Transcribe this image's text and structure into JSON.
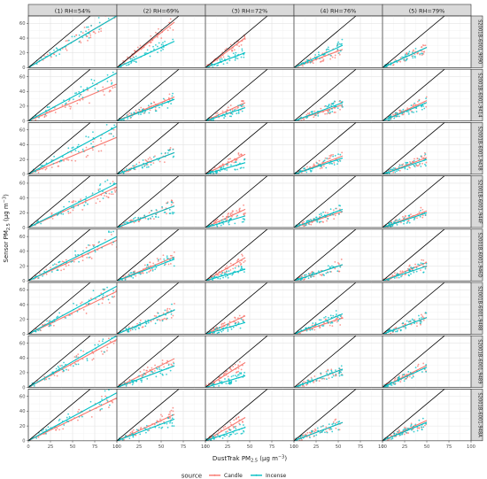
{
  "chart_data": {
    "type": "scatter",
    "xlabel": "DustTrak PM",
    "xlabel_sub": "2.5",
    "xlabel_unit": "(μg m",
    "xlabel_unit_sup": "−3",
    "xlabel_unit_end": ")",
    "ylabel": "Sensor PM",
    "ylabel_sub": "2.5",
    "ylabel_unit": "(μg m",
    "ylabel_unit_sup": "−3",
    "ylabel_unit_end": ")",
    "xlim": [
      0,
      100
    ],
    "ylim": [
      0,
      70
    ],
    "x_ticks": [
      0,
      25,
      50,
      75,
      100
    ],
    "y_ticks": [
      0,
      20,
      40,
      60
    ],
    "grid": true,
    "reference_line": "y = x",
    "columns": [
      "(1) RH=54%",
      "(2) RH=69%",
      "(3) RH=72%",
      "(4) RH=76%",
      "(5) RH=79%"
    ],
    "column_xmax": [
      100,
      65,
      45,
      55,
      50
    ],
    "rows": [
      "S2001B-6001-9090",
      "S2001B-6001-9414",
      "S2001B-6001-9438",
      "S2001B-6001-944F",
      "S2001B-6001-946D",
      "S2001B-6001-9488",
      "S2001B-6001-9489",
      "S2001B-6001-948A"
    ],
    "legend": {
      "title": "source",
      "position": "bottom",
      "entries": [
        "Candle",
        "Incense"
      ]
    },
    "colors": {
      "Candle": "#f8766d",
      "Incense": "#00bfc4"
    },
    "series_slopes": {
      "Candle": [
        [
          0.7,
          0.95,
          0.9,
          0.45,
          0.55
        ],
        [
          0.5,
          0.5,
          0.55,
          0.4,
          0.55
        ],
        [
          0.5,
          0.45,
          0.6,
          0.45,
          0.45
        ],
        [
          0.55,
          0.45,
          0.55,
          0.4,
          0.45
        ],
        [
          0.55,
          0.5,
          0.7,
          0.4,
          0.5
        ],
        [
          0.58,
          0.5,
          0.55,
          0.4,
          0.45
        ],
        [
          0.65,
          0.6,
          0.75,
          0.45,
          0.6
        ],
        [
          0.58,
          0.55,
          0.7,
          0.45,
          0.55
        ]
      ],
      "Incense": [
        [
          0.7,
          0.55,
          0.45,
          0.55,
          0.55
        ],
        [
          0.65,
          0.45,
          0.4,
          0.45,
          0.5
        ],
        [
          0.65,
          0.45,
          0.35,
          0.4,
          0.4
        ],
        [
          0.6,
          0.45,
          0.35,
          0.45,
          0.4
        ],
        [
          0.6,
          0.45,
          0.35,
          0.4,
          0.4
        ],
        [
          0.65,
          0.5,
          0.35,
          0.5,
          0.45
        ],
        [
          0.7,
          0.45,
          0.35,
          0.45,
          0.55
        ],
        [
          0.65,
          0.45,
          0.4,
          0.45,
          0.5
        ]
      ]
    }
  }
}
